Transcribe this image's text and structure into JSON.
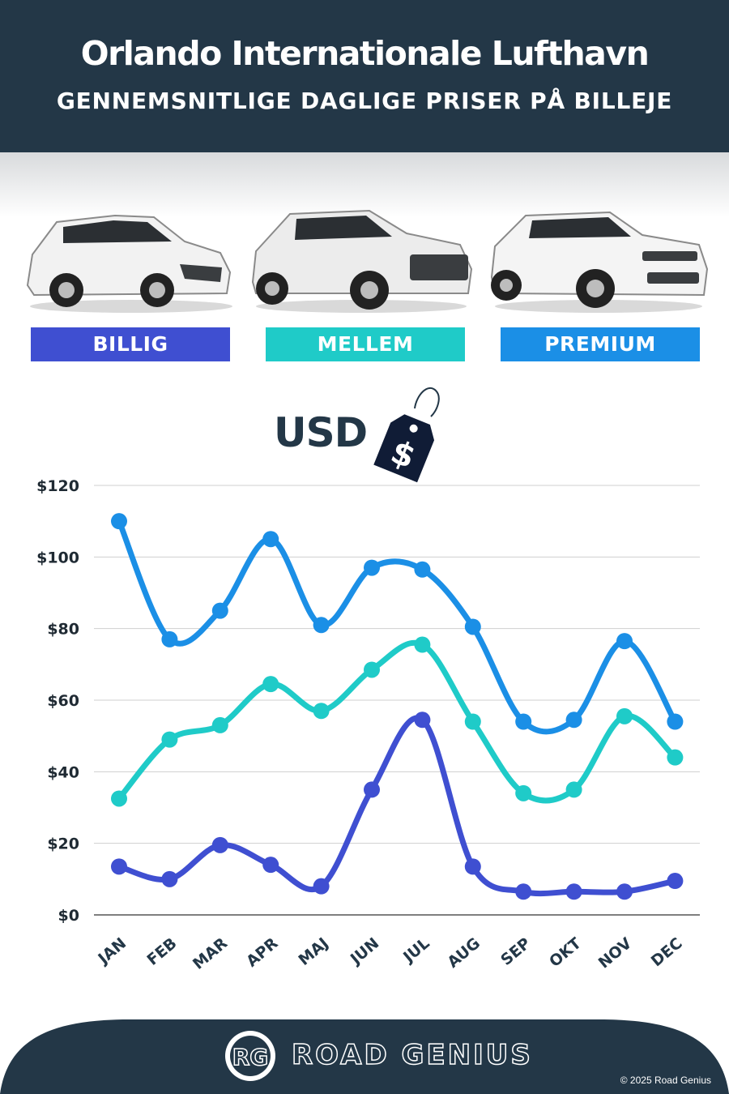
{
  "header": {
    "title": "Orlando Internationale Lufthavn",
    "subtitle": "GENNEMSNITLIGE DAGLIGE PRISER PÅ BILLEJE"
  },
  "categories": [
    {
      "label": "BILLIG",
      "color": "#3f4fd1"
    },
    {
      "label": "MELLEM",
      "color": "#1fcbc8"
    },
    {
      "label": "PREMIUM",
      "color": "#1b8fe6"
    }
  ],
  "currency_label": "USD",
  "tag_symbol": "$",
  "chart_data": {
    "type": "line",
    "x": [
      "JAN",
      "FEB",
      "MAR",
      "APR",
      "MAJ",
      "JUN",
      "JUL",
      "AUG",
      "SEP",
      "OKT",
      "NOV",
      "DEC"
    ],
    "yticks": [
      "$120",
      "$100",
      "$80",
      "$60",
      "$40",
      "$20",
      "$0"
    ],
    "ylim": [
      0,
      120
    ],
    "grid": true,
    "series": [
      {
        "name": "PREMIUM",
        "color": "#1b8fe6",
        "values": [
          110,
          77,
          85,
          105,
          81,
          97,
          96.5,
          80.5,
          54,
          54.5,
          76.5,
          54
        ]
      },
      {
        "name": "MELLEM",
        "color": "#1fcbc8",
        "values": [
          32.5,
          49,
          53,
          64.5,
          57,
          68.5,
          75.5,
          54,
          34,
          35,
          55.5,
          44
        ]
      },
      {
        "name": "BILLIG",
        "color": "#3f4fd1",
        "values": [
          13.5,
          10,
          19.5,
          14,
          8,
          35,
          54.5,
          13.5,
          6.5,
          6.5,
          6.5,
          9.5
        ]
      }
    ]
  },
  "footer": {
    "logo_monogram": "RG",
    "brand": "ROAD GENIUS",
    "copyright": "© 2025 Road Genius"
  }
}
